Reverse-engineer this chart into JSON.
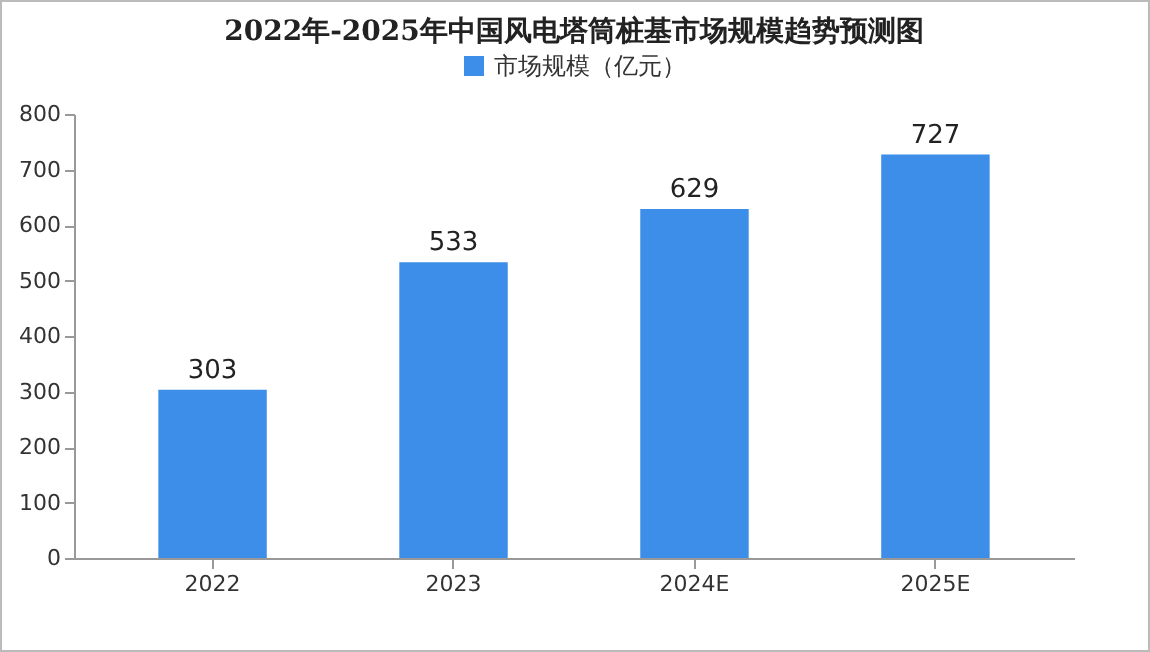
{
  "chart_data": {
    "type": "bar",
    "title": "2022年-2025年中国风电塔筒桩基市场规模趋势预测图",
    "categories": [
      "2022",
      "2023",
      "2024E",
      "2025E"
    ],
    "series": [
      {
        "name": "市场规模（亿元）",
        "color": "#3d8ee8",
        "values": [
          303,
          533,
          629,
          727
        ]
      }
    ],
    "ylim": [
      0,
      800
    ],
    "yticks": [
      0,
      100,
      200,
      300,
      400,
      500,
      600,
      700,
      800
    ],
    "grid": false,
    "legend": "top",
    "data_labels": true
  }
}
